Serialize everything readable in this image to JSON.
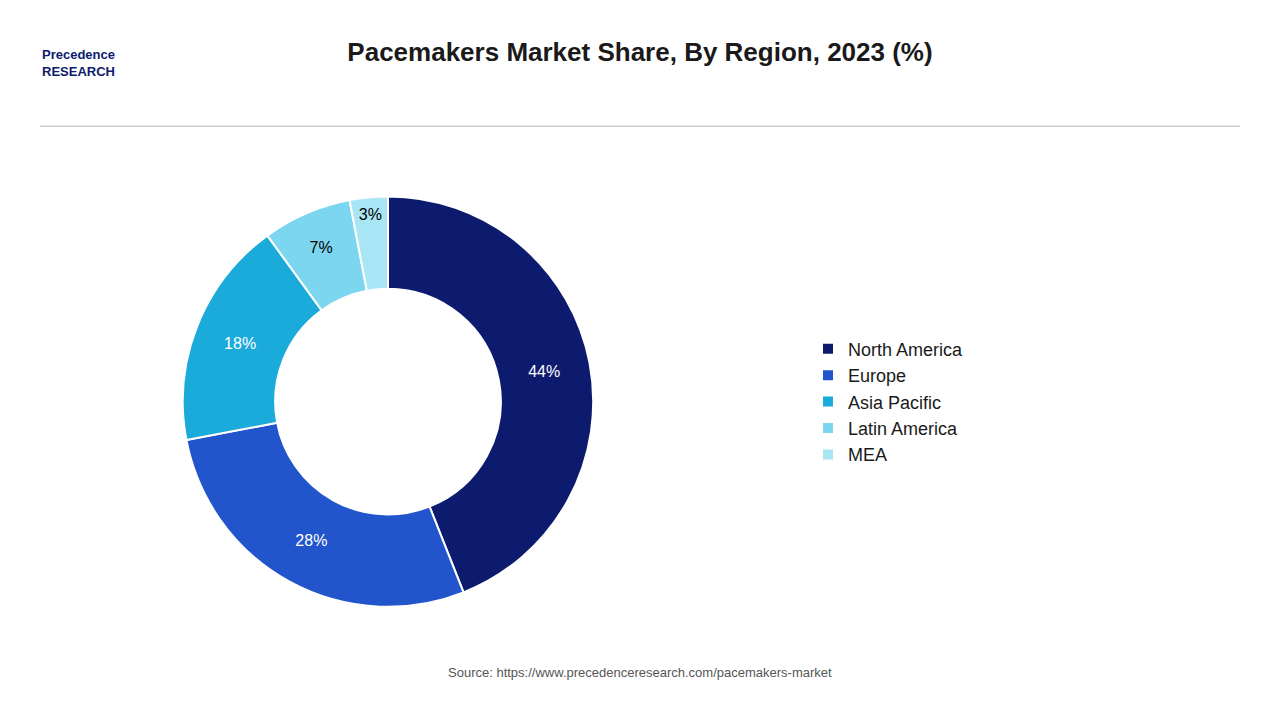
{
  "chart_data": {
    "type": "pie",
    "title": "Pacemakers Market Share, By Region, 2023 (%)",
    "categories": [
      "North America",
      "Europe",
      "Asia Pacific",
      "Latin America",
      "MEA"
    ],
    "values": [
      44,
      28,
      18,
      7,
      3
    ],
    "value_labels": [
      "44%",
      "28%",
      "18%",
      "7%",
      "3%"
    ],
    "colors": [
      "#0d1b6e",
      "#2255cc",
      "#1aabdb",
      "#7dd6f0",
      "#a8e6f5"
    ],
    "data_labels": true,
    "legend": "right",
    "annotations": [
      "Source: https://www.precedenceresearch.com/pacemakers-market",
      "Precedence\nRESEARCH"
    ]
  }
}
